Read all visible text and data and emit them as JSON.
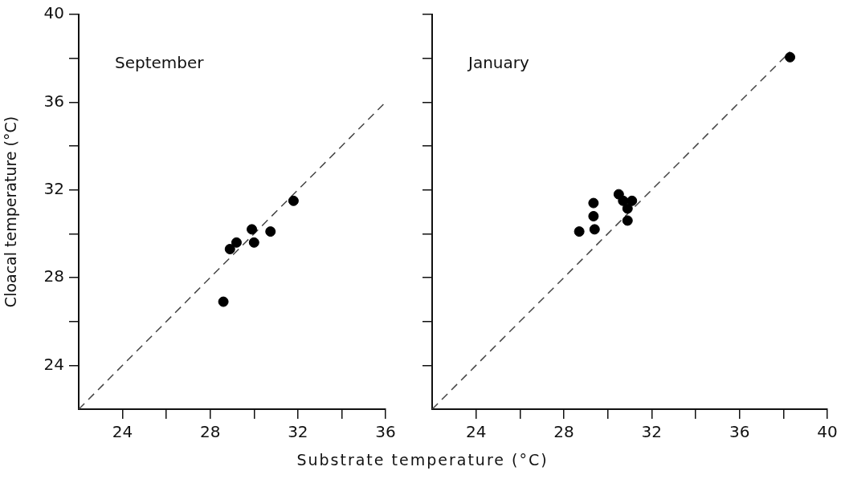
{
  "chart_data": [
    {
      "type": "scatter",
      "ylabel": "Cloacal temperature (°C)",
      "xlabel": "Substrate temperature (°C)",
      "annotations": [
        "September"
      ],
      "marker": "circle",
      "grid": false,
      "legend": false,
      "xlim": [
        22,
        36
      ],
      "xticks": [
        24,
        {
          "value": 26,
          "label": null
        },
        28,
        {
          "value": 30,
          "label": null
        },
        32,
        {
          "value": 34,
          "label": null
        },
        36
      ],
      "ylim": [
        22,
        40
      ],
      "yticks": [
        24,
        {
          "value": 26,
          "label": null
        },
        28,
        {
          "value": 30,
          "label": null
        },
        32,
        {
          "value": 34,
          "label": null
        },
        36,
        {
          "value": 38,
          "label": null
        },
        40
      ],
      "series": [
        {
          "type": "scatter",
          "color": "#000000",
          "x": [
            28.6,
            28.9,
            29.2,
            29.9,
            30.0,
            30.75,
            31.8
          ],
          "values": [
            26.9,
            29.3,
            29.6,
            30.2,
            29.6,
            30.1,
            31.5
          ]
        },
        {
          "type": "line",
          "color": "#444444",
          "line_style": "dashed",
          "marker": "none",
          "x": [
            22,
            36
          ],
          "values": [
            22,
            36
          ]
        }
      ]
    },
    {
      "type": "scatter",
      "annotations": [
        "January"
      ],
      "marker": "circle",
      "grid": false,
      "legend": false,
      "tick_labels": "x",
      "xlim": [
        22,
        40
      ],
      "xticks": [
        24,
        {
          "value": 26,
          "label": null
        },
        28,
        {
          "value": 30,
          "label": null
        },
        32,
        {
          "value": 34,
          "label": null
        },
        36,
        {
          "value": 38,
          "label": null
        },
        40
      ],
      "ylim": [
        22,
        40
      ],
      "yticks": [
        24,
        {
          "value": 26,
          "label": null
        },
        28,
        {
          "value": 30,
          "label": null
        },
        32,
        {
          "value": 34,
          "label": null
        },
        36,
        {
          "value": 38,
          "label": null
        },
        40
      ],
      "series": [
        {
          "type": "scatter",
          "color": "#000000",
          "x": [
            28.7,
            29.35,
            29.35,
            29.4,
            30.5,
            30.7,
            31.1,
            30.9,
            30.9,
            38.3
          ],
          "values": [
            30.1,
            31.4,
            30.8,
            30.2,
            31.8,
            31.5,
            31.5,
            31.15,
            30.6,
            38.05
          ]
        },
        {
          "type": "line",
          "color": "#444444",
          "line_style": "dashed",
          "marker": "none",
          "x": [
            22,
            38.3
          ],
          "values": [
            22,
            38.3
          ]
        }
      ]
    }
  ]
}
